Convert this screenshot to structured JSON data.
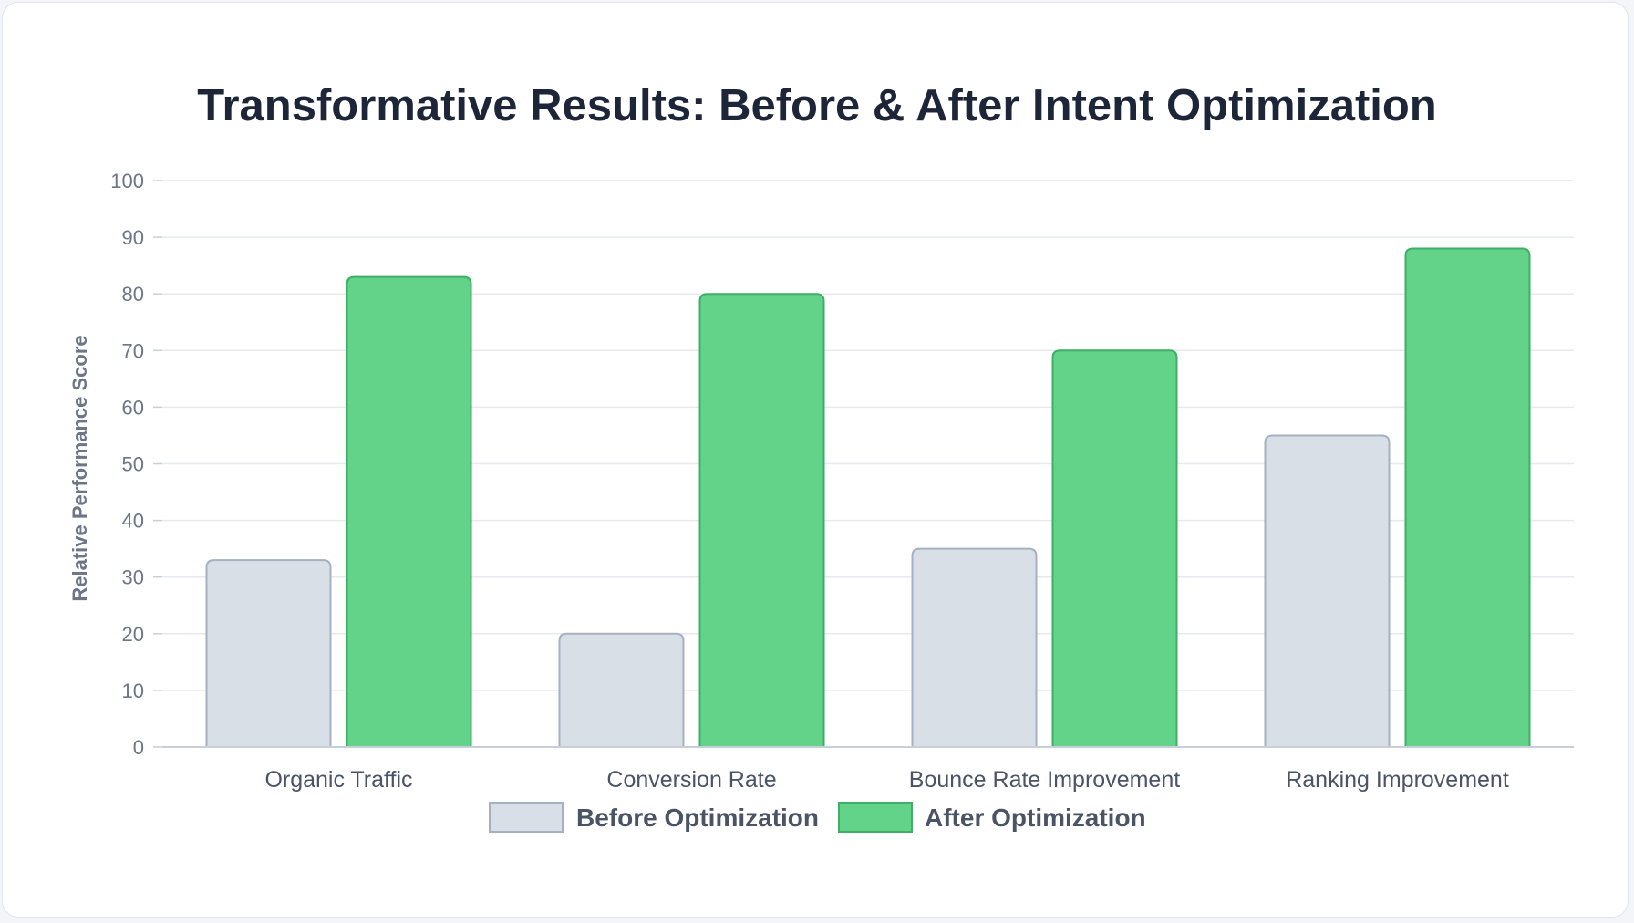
{
  "chart_data": {
    "type": "bar",
    "title": "Transformative Results: Before & After Intent Optimization",
    "ylabel": "Relative Performance Score",
    "xlabel": "",
    "ylim": [
      0,
      100
    ],
    "yticks": [
      0,
      10,
      20,
      30,
      40,
      50,
      60,
      70,
      80,
      90,
      100
    ],
    "grid": true,
    "legend_position": "bottom",
    "categories": [
      "Organic Traffic",
      "Conversion Rate",
      "Bounce Rate Improvement",
      "Ranking Improvement"
    ],
    "series": [
      {
        "name": "Before Optimization",
        "values": [
          33,
          20,
          35,
          55
        ],
        "color": "#d9dfe7",
        "stroke": "#a6b1c0"
      },
      {
        "name": "After Optimization",
        "values": [
          83,
          80,
          70,
          88
        ],
        "color": "#63d38a",
        "stroke": "#3fae67"
      }
    ]
  }
}
